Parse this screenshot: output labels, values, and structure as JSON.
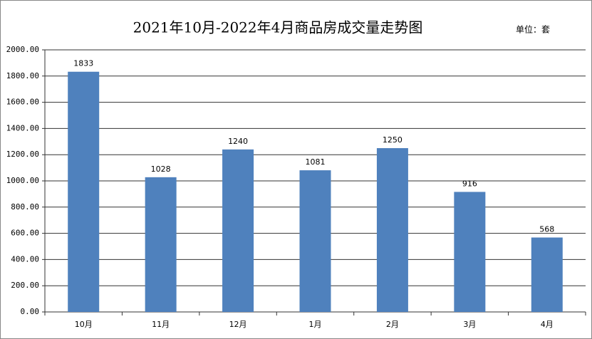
{
  "chart_data": {
    "type": "bar",
    "title": "2021年10月-2022年4月商品房成交量走势图",
    "unit_label": "单位：套",
    "categories": [
      "10月",
      "11月",
      "12月",
      "1月",
      "2月",
      "3月",
      "4月"
    ],
    "values": [
      1833,
      1028,
      1240,
      1081,
      1250,
      916,
      568
    ],
    "color": "#4f81bd",
    "ylim": [
      0,
      2000
    ],
    "yticks": [
      {
        "value": 0,
        "label": "0.00"
      },
      {
        "value": 200,
        "label": "200.00"
      },
      {
        "value": 400,
        "label": "400.00"
      },
      {
        "value": 600,
        "label": "600.00"
      },
      {
        "value": 800,
        "label": "800.00"
      },
      {
        "value": 1000,
        "label": "1000.00"
      },
      {
        "value": 1200,
        "label": "1200.00"
      },
      {
        "value": 1400,
        "label": "1400.00"
      },
      {
        "value": 1600,
        "label": "1600.00"
      },
      {
        "value": 1800,
        "label": "1800.00"
      },
      {
        "value": 2000,
        "label": "2000.00"
      }
    ],
    "grid": true
  }
}
